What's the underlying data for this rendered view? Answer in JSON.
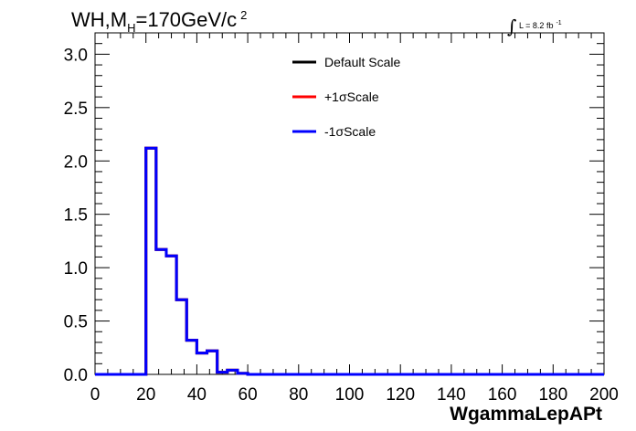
{
  "chart_data": {
    "type": "step-histogram",
    "title": "WH,M",
    "title_subscript": "H",
    "title_rest": "=170GeV/c",
    "title_superscript": "2",
    "luminosity": {
      "integral_sign": "∫",
      "text": "L = 8.2 fb",
      "superscript": "-1"
    },
    "xlabel": "WgammaLepAPt",
    "ylabel": "",
    "xlim": [
      0,
      200
    ],
    "ylim": [
      0,
      3.2
    ],
    "x_ticks": [
      0,
      20,
      40,
      60,
      80,
      100,
      120,
      140,
      160,
      180,
      200
    ],
    "y_ticks": [
      0.0,
      0.5,
      1.0,
      1.5,
      2.0,
      2.5,
      3.0
    ],
    "y_tick_labels": [
      "0.0",
      "0.5",
      "1.0",
      "1.5",
      "2.0",
      "2.5",
      "3.0"
    ],
    "bin_width": 4,
    "bin_edges_start": 0,
    "legend_position": "top-center",
    "series": [
      {
        "name": "Default Scale",
        "color": "#000000",
        "values": [
          0,
          0,
          0,
          0,
          0,
          2.12,
          1.17,
          1.11,
          0.7,
          0.32,
          0.2,
          0.22,
          0.02,
          0.04,
          0.01,
          0,
          0,
          0,
          0,
          0,
          0,
          0,
          0,
          0,
          0,
          0,
          0,
          0,
          0,
          0,
          0,
          0,
          0,
          0,
          0,
          0,
          0,
          0,
          0,
          0,
          0,
          0,
          0,
          0,
          0,
          0,
          0,
          0,
          0,
          0
        ]
      },
      {
        "name": "+1σScale",
        "color": "#ff0000",
        "values": [
          0,
          0,
          0,
          0,
          0,
          2.12,
          1.17,
          1.11,
          0.7,
          0.32,
          0.2,
          0.22,
          0.02,
          0.04,
          0.01,
          0,
          0,
          0,
          0,
          0,
          0,
          0,
          0,
          0,
          0,
          0,
          0,
          0,
          0,
          0,
          0,
          0,
          0,
          0,
          0,
          0,
          0,
          0,
          0,
          0,
          0,
          0,
          0,
          0,
          0,
          0,
          0,
          0,
          0,
          0
        ]
      },
      {
        "name": "-1σScale",
        "color": "#0000ff",
        "values": [
          0,
          0,
          0,
          0,
          0,
          2.12,
          1.17,
          1.11,
          0.7,
          0.32,
          0.2,
          0.22,
          0.02,
          0.04,
          0.01,
          0,
          0,
          0,
          0,
          0,
          0,
          0,
          0,
          0,
          0,
          0,
          0,
          0,
          0,
          0,
          0,
          0,
          0,
          0,
          0,
          0,
          0,
          0,
          0,
          0,
          0,
          0,
          0,
          0,
          0,
          0,
          0,
          0,
          0,
          0
        ]
      }
    ]
  }
}
